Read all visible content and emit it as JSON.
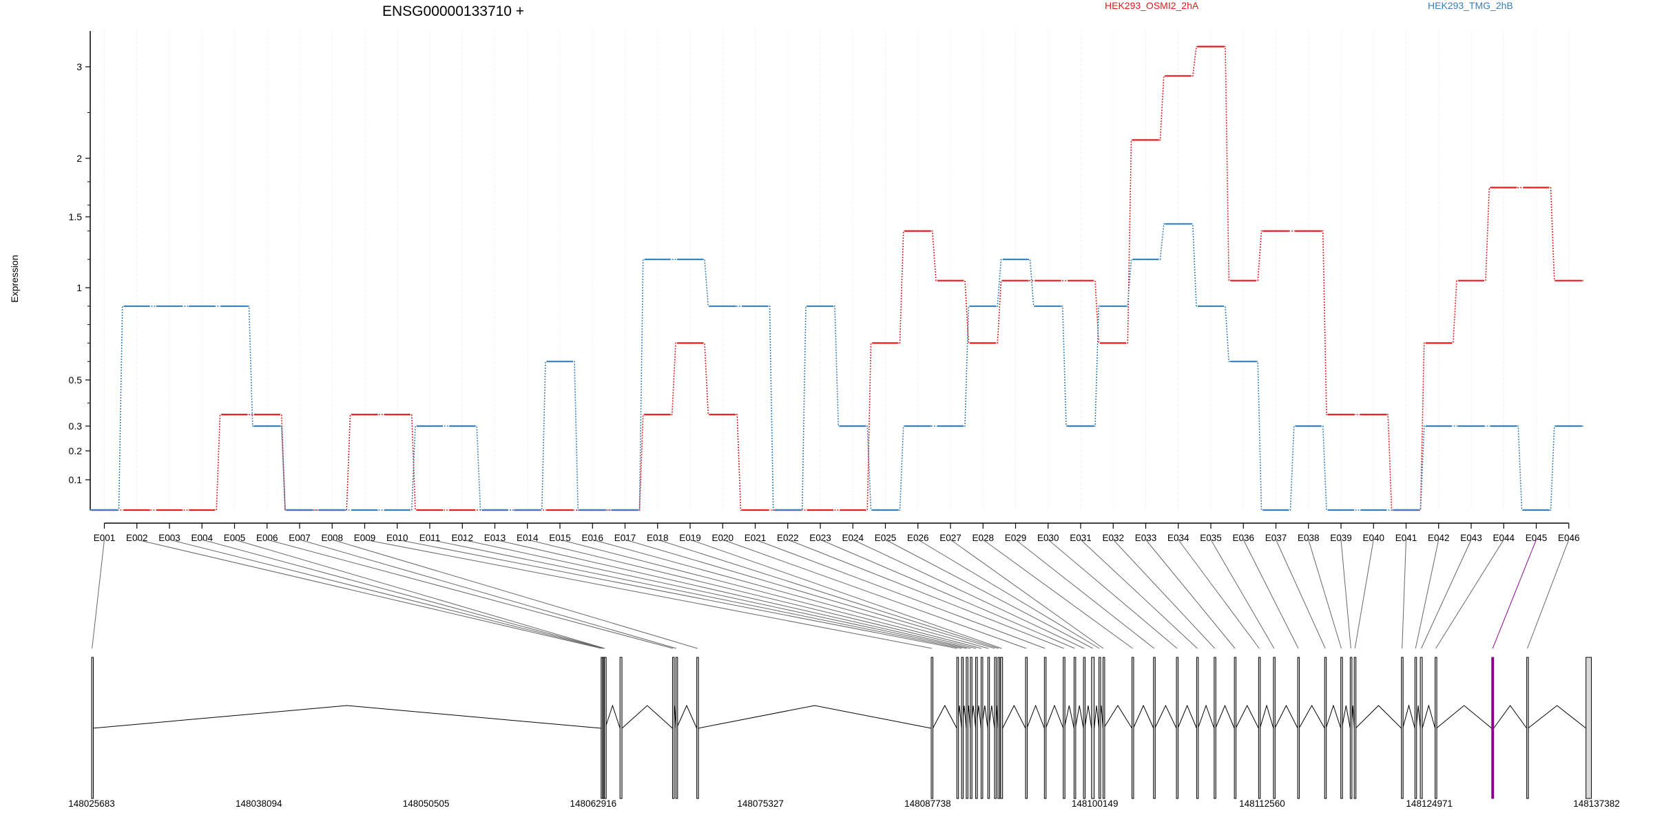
{
  "chart_data": {
    "type": "line",
    "title": "ENSG00000133710 +",
    "ylabel": "Expression",
    "xlabel": "",
    "y_scale": "transformed (tick values non-linear)",
    "y_ticks": [
      0.1,
      0.2,
      0.3,
      0.5,
      1,
      1.5,
      2,
      3
    ],
    "grid": "vertical dotted lines at each exon",
    "legend_placement": "top",
    "categories": [
      "E001",
      "E002",
      "E003",
      "E004",
      "E005",
      "E006",
      "E007",
      "E008",
      "E009",
      "E010",
      "E011",
      "E012",
      "E013",
      "E014",
      "E015",
      "E016",
      "E017",
      "E018",
      "E019",
      "E020",
      "E021",
      "E022",
      "E023",
      "E024",
      "E025",
      "E026",
      "E027",
      "E028",
      "E029",
      "E030",
      "E031",
      "E032",
      "E033",
      "E034",
      "E035",
      "E036",
      "E037",
      "E038",
      "E039",
      "E040",
      "E041",
      "E042",
      "E043",
      "E044",
      "E045",
      "E046"
    ],
    "series": [
      {
        "name": "HEK293_OSMI2_2hA",
        "color": "#e41a1c",
        "values": [
          0,
          0,
          0,
          0,
          0.35,
          0.35,
          0,
          0,
          0.35,
          0.35,
          0,
          0,
          0,
          0,
          0,
          0,
          0,
          0.35,
          0.7,
          0.35,
          0,
          0,
          0,
          0,
          0.7,
          1.4,
          1.05,
          0.7,
          1.05,
          1.05,
          1.05,
          0.7,
          2.2,
          2.9,
          3.25,
          1.05,
          1.4,
          1.4,
          0.35,
          0.35,
          0,
          0.7,
          1.05,
          1.75,
          1.75,
          1.05
        ]
      },
      {
        "name": "HEK293_TMG_2hB",
        "color": "#377eb8",
        "values": [
          0,
          0.9,
          0.9,
          0.9,
          0.9,
          0.3,
          0,
          0,
          0,
          0,
          0.3,
          0.3,
          0,
          0,
          0.6,
          0,
          0,
          1.2,
          1.2,
          0.9,
          0.9,
          0,
          0.9,
          0.3,
          0,
          0.3,
          0.3,
          0.9,
          1.2,
          0.9,
          0.3,
          0.9,
          1.2,
          1.45,
          0.9,
          0.6,
          0,
          0.3,
          0,
          0,
          0,
          0.3,
          0.3,
          0.3,
          0,
          0.3
        ]
      }
    ],
    "gene_coordinates": [
      "148025683",
      "148038094",
      "148050505",
      "148062916",
      "148075327",
      "148087738",
      "148100149",
      "148112560",
      "148124971",
      "148137382"
    ],
    "exons_bp": [
      [
        148025683,
        148025750
      ],
      [
        148063500,
        148063540
      ],
      [
        148063600,
        148063640
      ],
      [
        148063680,
        148063720
      ],
      [
        148063750,
        148063800
      ],
      [
        148064900,
        148065050
      ],
      [
        148068800,
        148068850
      ],
      [
        148069050,
        148069100
      ],
      [
        148070600,
        148070700
      ],
      [
        148088000,
        148088120
      ],
      [
        148089900,
        148089950
      ],
      [
        148090250,
        148090300
      ],
      [
        148090600,
        148090650
      ],
      [
        148090900,
        148090950
      ],
      [
        148091300,
        148091350
      ],
      [
        148091700,
        148091750
      ],
      [
        148092200,
        148092280
      ],
      [
        148092700,
        148092750
      ],
      [
        148092950,
        148093050
      ],
      [
        148093150,
        148093300
      ],
      [
        148095000,
        148095100
      ],
      [
        148096400,
        148096500
      ],
      [
        148097800,
        148097880
      ],
      [
        148098600,
        148098700
      ],
      [
        148099300,
        148099400
      ],
      [
        148099900,
        148100100
      ],
      [
        148100450,
        148100500
      ],
      [
        148100750,
        148100800
      ],
      [
        148102900,
        148103000
      ],
      [
        148104500,
        148104600
      ],
      [
        148106200,
        148106300
      ],
      [
        148107700,
        148107800
      ],
      [
        148109000,
        148109100
      ],
      [
        148110500,
        148110600
      ],
      [
        148112300,
        148112400
      ],
      [
        148113400,
        148113500
      ],
      [
        148115200,
        148115300
      ],
      [
        148117200,
        148117300
      ],
      [
        148118400,
        148118480
      ],
      [
        148119100,
        148119200
      ],
      [
        148119400,
        148119500
      ],
      [
        148122900,
        148123000
      ],
      [
        148123900,
        148124000
      ],
      [
        148124300,
        148124450
      ],
      [
        148125400,
        148125500
      ],
      [
        148129600,
        148129750
      ],
      [
        148132200,
        148132300
      ],
      [
        148136600,
        148137000
      ]
    ],
    "exon_links": [
      0,
      1,
      2,
      3,
      4,
      5,
      6,
      7,
      8,
      9,
      10,
      11,
      12,
      13,
      14,
      15,
      16,
      17,
      18,
      19,
      20,
      21,
      22,
      23,
      24,
      25,
      26,
      27,
      28,
      29,
      30,
      31,
      32,
      33,
      34,
      35,
      36,
      37,
      38,
      39,
      40,
      41,
      42,
      43,
      44,
      45
    ],
    "highlight_exon": "E045",
    "highlight_color": "#8b008b"
  }
}
